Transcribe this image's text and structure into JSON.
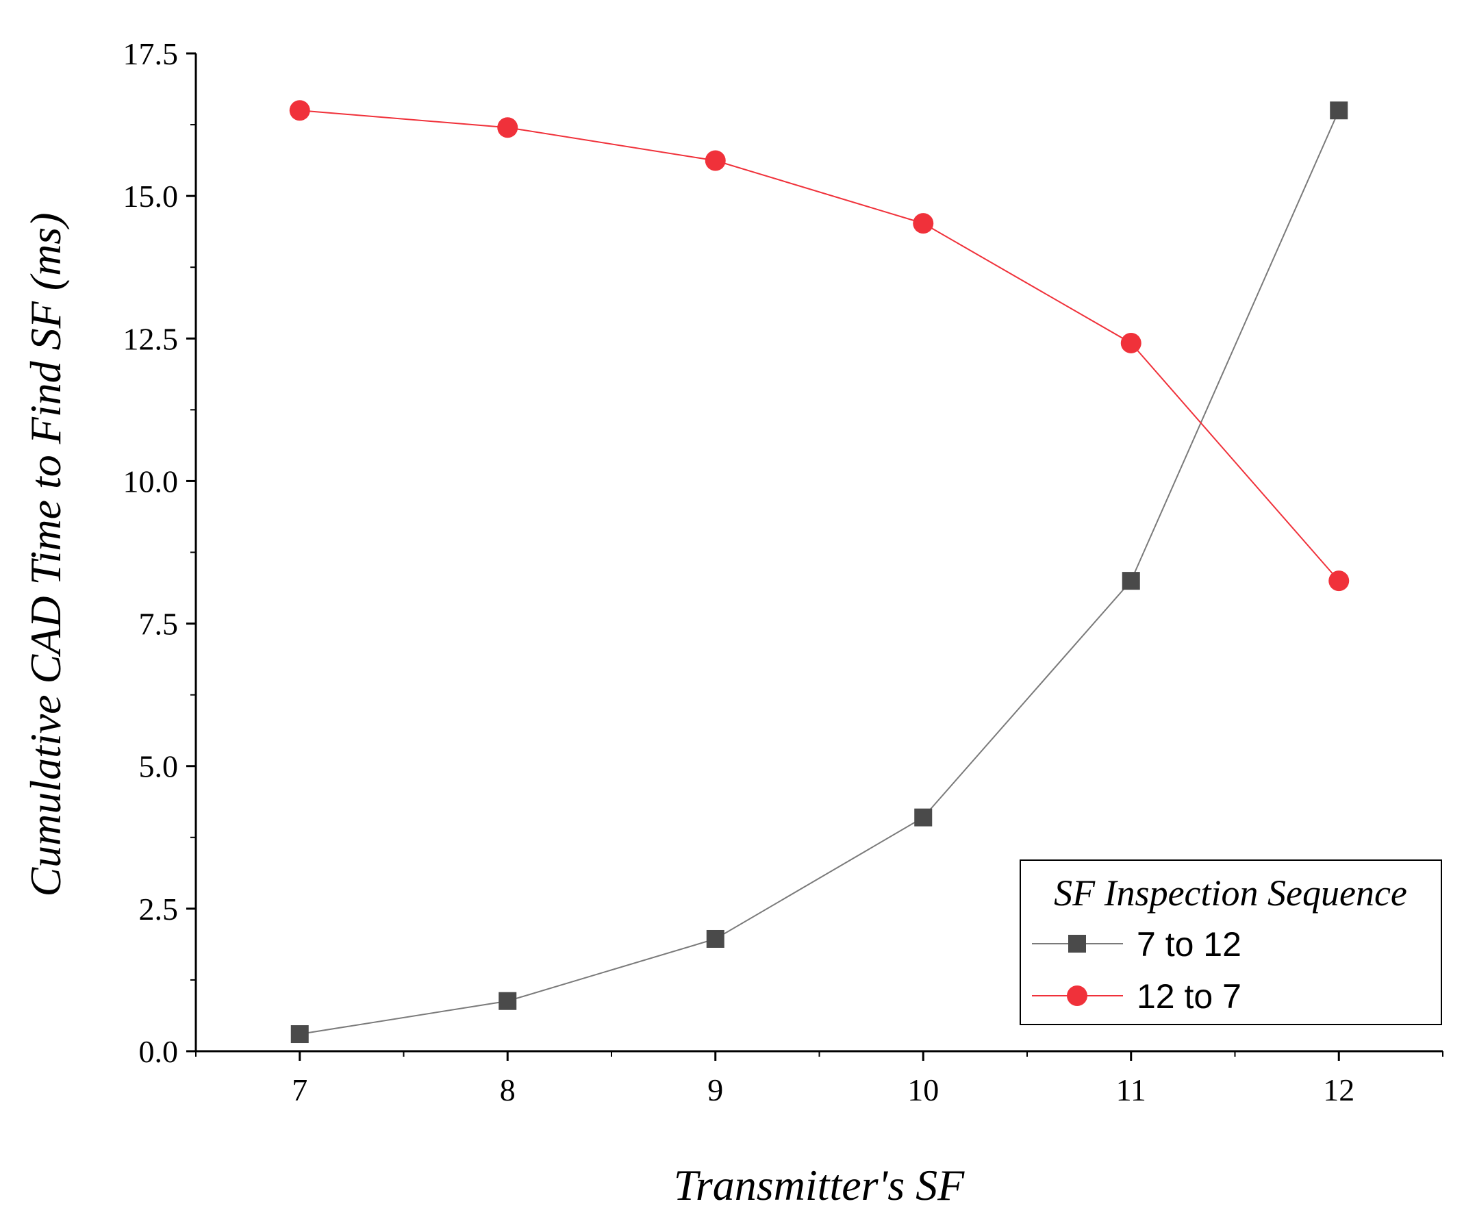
{
  "chart_data": {
    "type": "line",
    "title": "",
    "xlabel": "Transmitter's SF",
    "ylabel": "Cumulative CAD Time to Find SF (ms)",
    "x": [
      7,
      8,
      9,
      10,
      11,
      12
    ],
    "x_tick_labels": [
      "7",
      "8",
      "9",
      "10",
      "11",
      "12"
    ],
    "xlim": [
      6.5,
      12.5
    ],
    "ylim": [
      0,
      17.5
    ],
    "y_tick_labels": [
      "0.0",
      "2.5",
      "5.0",
      "7.5",
      "10.0",
      "12.5",
      "15.0",
      "17.5"
    ],
    "grid": false,
    "legend": {
      "title": "SF Inspection Sequence",
      "placement": "bottom-right"
    },
    "series": [
      {
        "name": "7 to 12",
        "marker": "square",
        "color": "#4a4a4a",
        "line_color": "#7a7a7a",
        "values": [
          0.3,
          0.88,
          1.97,
          4.1,
          8.25,
          16.5
        ]
      },
      {
        "name": "12 to 7",
        "marker": "circle",
        "color": "#f0313a",
        "line_color": "#f0313a",
        "values": [
          16.5,
          16.2,
          15.62,
          14.52,
          12.42,
          8.25
        ]
      }
    ]
  }
}
